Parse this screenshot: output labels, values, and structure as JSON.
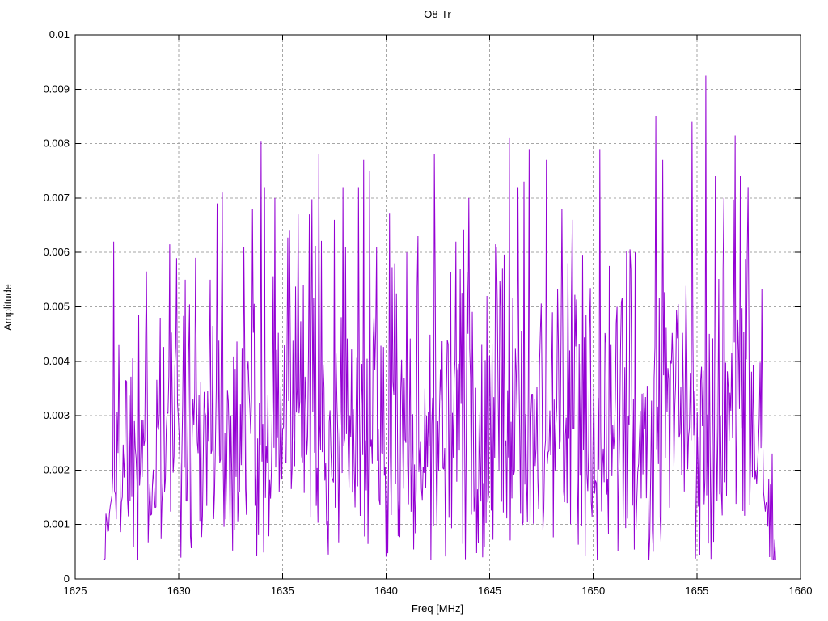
{
  "page": {
    "background_color": "#ffffff",
    "text_color": "#000000"
  },
  "chart_data": {
    "type": "line",
    "title": "O8-Tr",
    "xlabel": "Freq [MHz]",
    "ylabel": "Amplitude",
    "xlim": [
      1625,
      1660
    ],
    "ylim": [
      0,
      0.01
    ],
    "x_ticks": [
      1625,
      1630,
      1635,
      1640,
      1645,
      1650,
      1655,
      1660
    ],
    "y_ticks": [
      0,
      0.001,
      0.002,
      0.003,
      0.004,
      0.005,
      0.006,
      0.007,
      0.008,
      0.009,
      0.01
    ],
    "y_tick_labels": [
      "0",
      "0.001",
      "0.002",
      "0.003",
      "0.004",
      "0.005",
      "0.006",
      "0.007",
      "0.008",
      "0.009",
      "0.01"
    ],
    "grid": {
      "show": true,
      "style": "dashed",
      "color": "#a6a6a6",
      "dash": "3,3"
    },
    "legend": "none",
    "border_color": "#000000",
    "tick_length": 7,
    "series": [
      {
        "name": "O8-Tr",
        "color": "#9400D3",
        "line_width": 1,
        "x_start": 1626.4,
        "x_end": 1658.8,
        "n_points": 780,
        "amplitude_range_typical": [
          0.0005,
          0.006
        ],
        "noise_model": {
          "distribution": "rayleigh",
          "sigma": 0.00225,
          "clip_max": 0.0072,
          "min": 0.00035,
          "seed": 1337,
          "ramp_in_mhz": 0.9,
          "ramp_out_mhz": 1.0,
          "edge_floor": 0.22
        },
        "notable_peaks": [
          [
            1626.85,
            0.0062
          ],
          [
            1628.05,
            0.00485
          ],
          [
            1629.1,
            0.0048
          ],
          [
            1629.55,
            0.00615
          ],
          [
            1630.3,
            0.0055
          ],
          [
            1630.8,
            0.0059
          ],
          [
            1631.5,
            0.0055
          ],
          [
            1631.85,
            0.0069
          ],
          [
            1632.1,
            0.0071
          ],
          [
            1633.15,
            0.0061
          ],
          [
            1633.55,
            0.0068
          ],
          [
            1633.95,
            0.00805
          ],
          [
            1634.15,
            0.0072
          ],
          [
            1634.65,
            0.007
          ],
          [
            1635.35,
            0.0064
          ],
          [
            1635.75,
            0.0067
          ],
          [
            1636.3,
            0.0067
          ],
          [
            1636.75,
            0.0078
          ],
          [
            1637.5,
            0.0066
          ],
          [
            1638.05,
            0.0061
          ],
          [
            1638.9,
            0.0077
          ],
          [
            1639.2,
            0.0075
          ],
          [
            1639.55,
            0.0061
          ],
          [
            1640.4,
            0.0058
          ],
          [
            1641.0,
            0.006
          ],
          [
            1641.55,
            0.0063
          ],
          [
            1642.35,
            0.0078
          ],
          [
            1643.35,
            0.0062
          ],
          [
            1644.0,
            0.007
          ],
          [
            1644.85,
            0.0052
          ],
          [
            1645.3,
            0.00615
          ],
          [
            1645.6,
            0.0057
          ],
          [
            1645.95,
            0.0081
          ],
          [
            1646.65,
            0.0073
          ],
          [
            1646.9,
            0.0079
          ],
          [
            1647.75,
            0.0077
          ],
          [
            1648.5,
            0.0068
          ],
          [
            1649.0,
            0.0066
          ],
          [
            1650.3,
            0.0079
          ],
          [
            1651.1,
            0.0047
          ],
          [
            1652.0,
            0.006
          ],
          [
            1653.0,
            0.0085
          ],
          [
            1653.35,
            0.0077
          ],
          [
            1654.75,
            0.0084
          ],
          [
            1655.45,
            0.00925
          ],
          [
            1655.9,
            0.0074
          ],
          [
            1656.3,
            0.007
          ],
          [
            1656.85,
            0.00815
          ],
          [
            1657.1,
            0.0074
          ]
        ]
      }
    ]
  }
}
